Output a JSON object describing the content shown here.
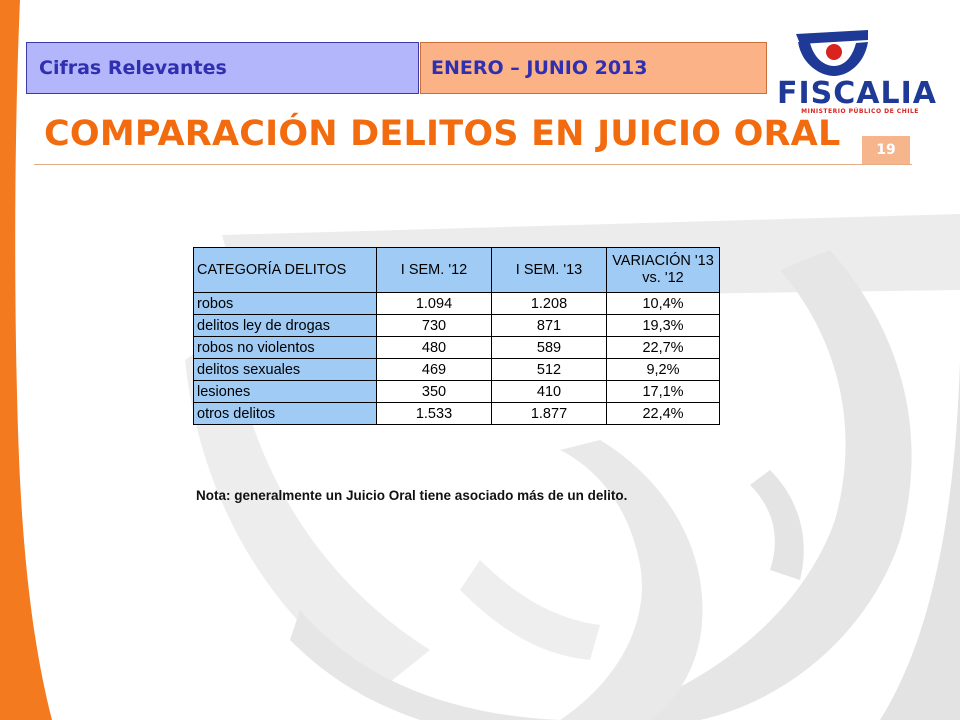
{
  "header": {
    "left_label": "Cifras Relevantes",
    "right_label": "ENERO – JUNIO 2013"
  },
  "title": "COMPARACIÓN DELITOS EN JUICIO ORAL",
  "page_number": "19",
  "logo": {
    "name": "FISCALIA",
    "subtitle": "MINISTERIO PÚBLICO DE CHILE"
  },
  "table": {
    "headers": [
      "CATEGORÍA DELITOS",
      "I SEM. '12",
      "I SEM. '13",
      "VARIACIÓN '13 vs. '12"
    ],
    "rows": [
      [
        "robos",
        "1.094",
        "1.208",
        "10,4%"
      ],
      [
        "delitos ley de drogas",
        "730",
        "871",
        "19,3%"
      ],
      [
        "robos no violentos",
        "480",
        "589",
        "22,7%"
      ],
      [
        "delitos sexuales",
        "469",
        "512",
        "9,2%"
      ],
      [
        "lesiones",
        "350",
        "410",
        "17,1%"
      ],
      [
        "otros delitos",
        "1.533",
        "1.877",
        "22,4%"
      ]
    ]
  },
  "note": "Nota: generalmente un Juicio Oral tiene asociado más de un delito.",
  "colors": {
    "accent_orange": "#f26b0e",
    "header_blue": "#b3b6fb",
    "header_peach": "#fbb287",
    "table_blue": "#9fcbf5"
  }
}
